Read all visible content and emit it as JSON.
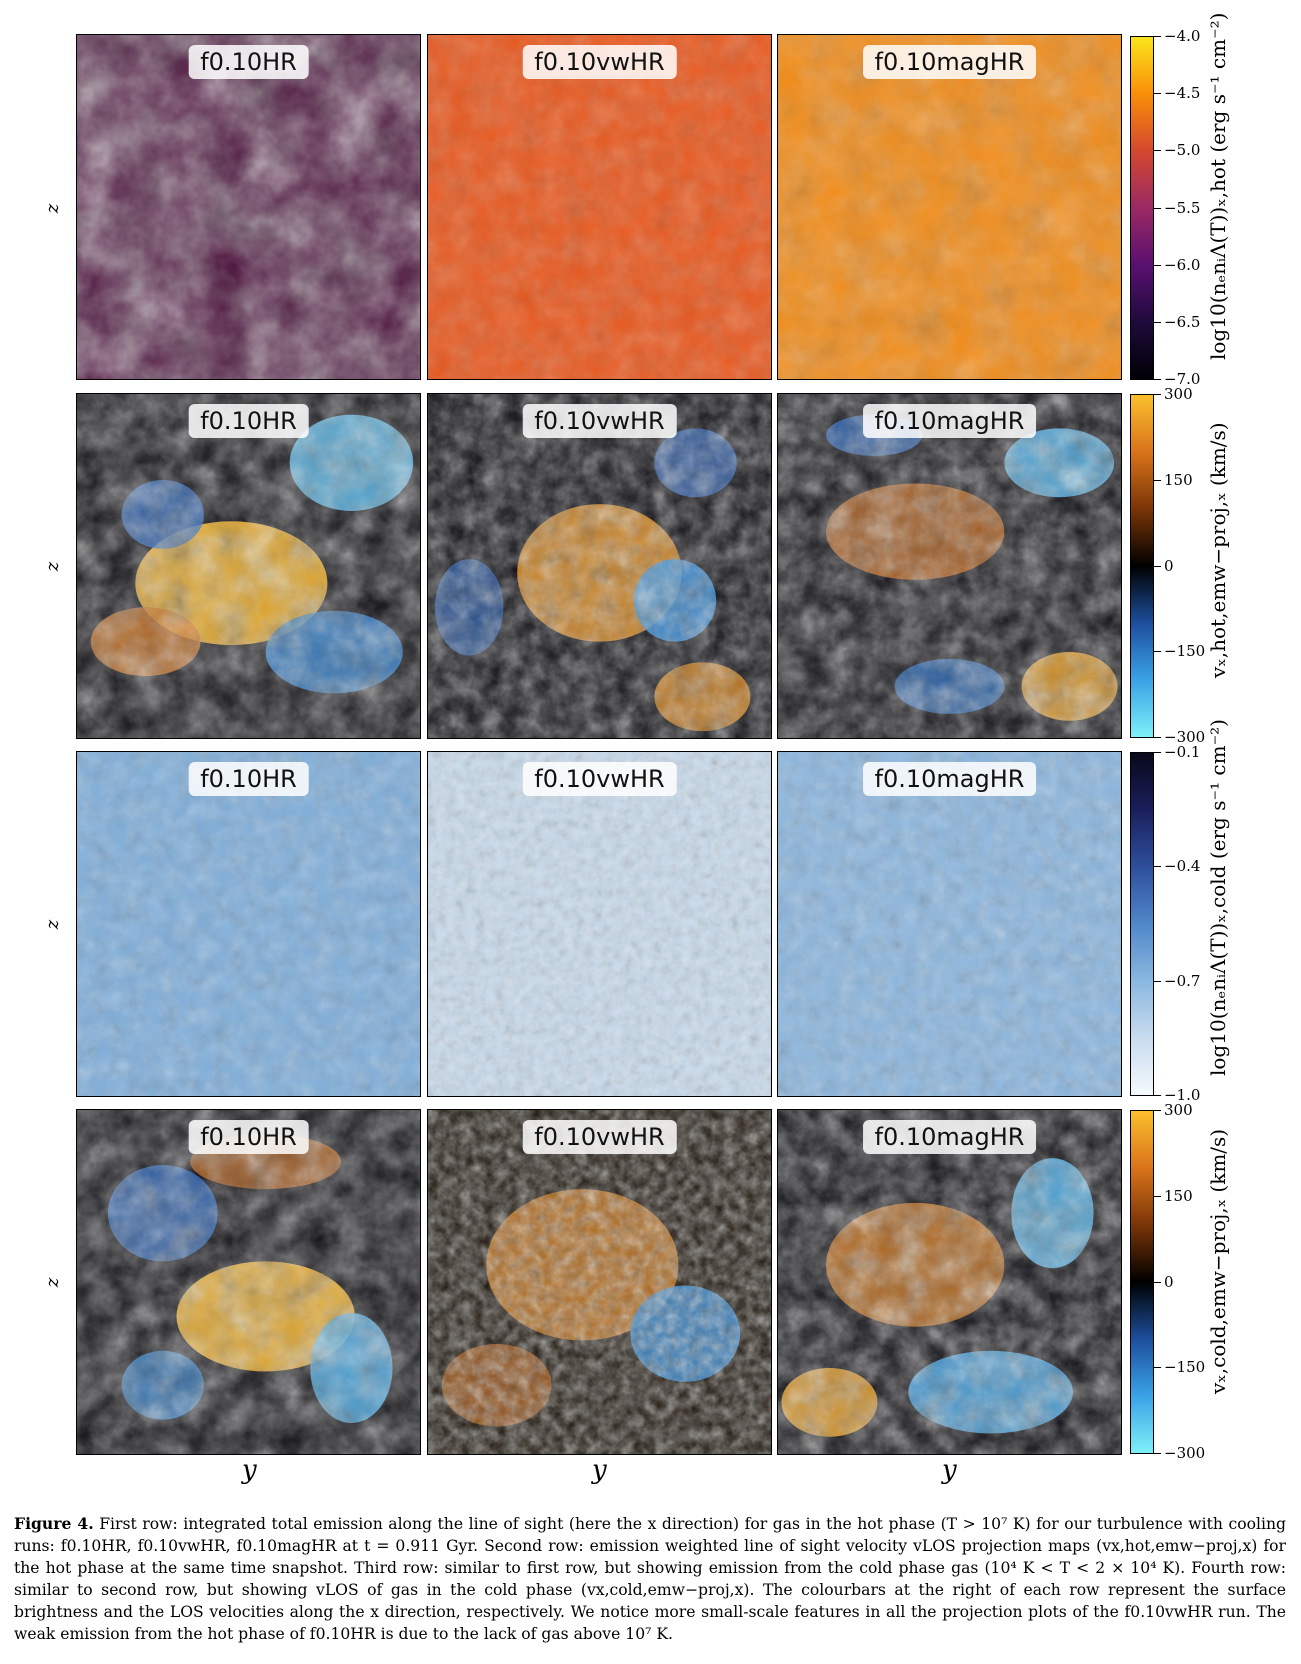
{
  "panel_label_rows": [
    [
      "f0.10HR",
      "f0.10vwHR",
      "f0.10magHR"
    ],
    [
      "f0.10HR",
      "f0.10vwHR",
      "f0.10magHR"
    ],
    [
      "f0.10HR",
      "f0.10vwHR",
      "f0.10magHR"
    ],
    [
      "f0.10HR",
      "f0.10vwHR",
      "f0.10magHR"
    ]
  ],
  "axis": {
    "y_axis": "z",
    "x_axis": "y"
  },
  "colorbars": [
    {
      "label": "log10(nₑnᵢΛ(T))ₓ,hot (erg s⁻¹ cm⁻²)",
      "ticks": [
        "−4.0",
        "−4.5",
        "−5.0",
        "−5.5",
        "−6.0",
        "−6.5",
        "−7.0"
      ],
      "colors": [
        "#fbe51d",
        "#f98e08",
        "#d4482f",
        "#9b2964",
        "#5a1070",
        "#1e0a3c",
        "#000004"
      ]
    },
    {
      "label": "vₓ,hot,emw−proj,ₓ (km/s)",
      "ticks": [
        "300",
        "150",
        "0",
        "−150",
        "−300"
      ],
      "colors": [
        "#fbc02d",
        "#d9731a",
        "#7a3508",
        "#000000",
        "#1d4e9c",
        "#3aa2e6",
        "#7ef0f8"
      ]
    },
    {
      "label": "log10(nₑnᵢΛ(T))ₓ,cold (erg s⁻¹ cm⁻²)",
      "ticks": [
        "−0.1",
        "−0.4",
        "−0.7",
        "−1.0"
      ],
      "colors": [
        "#08081a",
        "#1a1f5c",
        "#2e4f9c",
        "#4f87c9",
        "#8ab8e0",
        "#c8dcee",
        "#f6fafd"
      ]
    },
    {
      "label": "vₓ,cold,emw−proj,ₓ (km/s)",
      "ticks": [
        "300",
        "150",
        "0",
        "−150",
        "−300"
      ],
      "colors": [
        "#fbc02d",
        "#d9731a",
        "#7a3508",
        "#000000",
        "#1d4e9c",
        "#3aa2e6",
        "#7ef0f8"
      ]
    }
  ],
  "caption": {
    "fig": "Figure 4.",
    "text": " First row: integrated total emission along the line of sight (here the x direction) for gas in the hot phase (T > 10⁷ K) for our turbulence with cooling runs: f0.10HR, f0.10vwHR, f0.10magHR at t = 0.911 Gyr. Second row: emission weighted line of sight velocity vLOS projection maps (vx,hot,emw−proj,x) for the hot phase at the same time snapshot. Third row: similar to first row, but showing emission from the cold phase gas (10⁴ K < T < 2 × 10⁴ K). Fourth row: similar to second row, but showing vLOS of gas in the cold phase (vx,cold,emw−proj,x). The colourbars at the right of each row represent the surface brightness and the LOS velocities along the x direction, respectively. We notice more small-scale features in all the projection plots of the f0.10vwHR run. The weak emission from the hot phase of f0.10HR is due to the lack of gas above 10⁷ K."
  }
}
